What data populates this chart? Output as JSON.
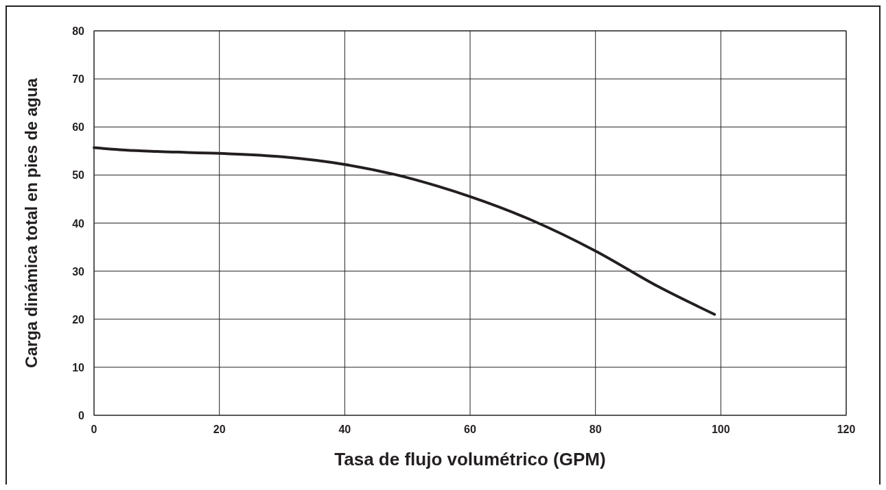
{
  "chart_data": {
    "type": "line",
    "xlabel": "Tasa de flujo volumétrico (GPM)",
    "ylabel": "Carga dinámica total en pies de agua",
    "x": [
      0,
      5,
      10,
      20,
      30,
      40,
      48,
      55,
      60,
      70,
      80,
      90,
      99
    ],
    "series": [
      {
        "color": "#231f20",
        "values": [
          55.7,
          55.2,
          54.9,
          54.5,
          53.8,
          52.2,
          50.1,
          47.6,
          45.5,
          40.5,
          34.2,
          26.8,
          21
        ]
      }
    ],
    "xlim": [
      0,
      120
    ],
    "xticks": [
      0,
      20,
      40,
      60,
      80,
      100,
      120
    ],
    "ylim": [
      0,
      80
    ],
    "yticks": [
      0,
      10,
      20,
      30,
      40,
      50,
      60,
      70,
      80
    ],
    "grid": true,
    "marker": "none",
    "line_style": "solid"
  }
}
